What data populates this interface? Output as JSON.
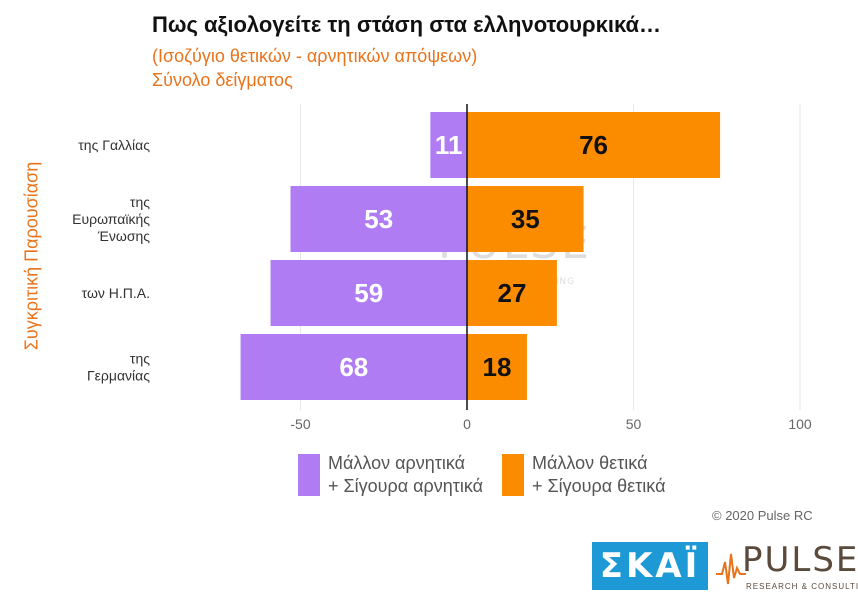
{
  "title": "Πως αξιολογείτε τη στάση στα ελληνοτουρκικά…",
  "subtitle": "(Ισοζύγιο θετικών - αρνητικών απόψεων)",
  "subtitle2": "Σύνολο δείγματος",
  "ylabel": "Συγκριτική  Παρουσίαση",
  "copyright": "© 2020 Pulse RC",
  "logos": {
    "skai": "ΣΚΑΪ",
    "pulse": "PULSE",
    "pulse_sub": "RESEARCH & CONSULTING"
  },
  "legend": [
    {
      "line1": "Μάλλον αρνητικά",
      "line2": "+ Σίγουρα αρνητικά",
      "color": "#b07cf4"
    },
    {
      "line1": "Μάλλον θετικά",
      "line2": "+ Σίγουρα θετικά",
      "color": "#fb8c00"
    }
  ],
  "chart_data": {
    "type": "bar",
    "orientation": "horizontal-diverging",
    "categories": [
      [
        "της Γαλλίας"
      ],
      [
        "της",
        "Ευρωπαϊκής",
        "Ένωσης"
      ],
      [
        "των Η.Π.Α."
      ],
      [
        "της",
        "Γερμανίας"
      ]
    ],
    "series": [
      {
        "name": "Μάλλον αρνητικά + Σίγουρα αρνητικά",
        "values": [
          11,
          53,
          59,
          68
        ],
        "color": "#b07cf4",
        "direction": "negative",
        "label_color": "#ffffff"
      },
      {
        "name": "Μάλλον θετικά + Σίγουρα θετικά",
        "values": [
          76,
          35,
          27,
          18
        ],
        "color": "#fb8c00",
        "direction": "positive",
        "label_color": "#111111"
      }
    ],
    "xlim": [
      -75,
      100
    ],
    "xticks": [
      -50,
      0,
      50,
      100
    ],
    "xtick_labels": [
      "-50",
      "0",
      "50",
      "100"
    ],
    "grid": true
  }
}
